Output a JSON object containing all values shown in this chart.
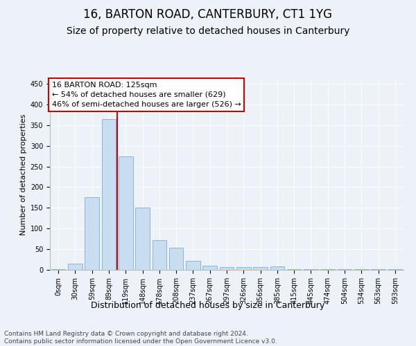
{
  "title1": "16, BARTON ROAD, CANTERBURY, CT1 1YG",
  "title2": "Size of property relative to detached houses in Canterbury",
  "xlabel": "Distribution of detached houses by size in Canterbury",
  "ylabel": "Number of detached properties",
  "bin_labels": [
    "0sqm",
    "30sqm",
    "59sqm",
    "89sqm",
    "119sqm",
    "148sqm",
    "178sqm",
    "208sqm",
    "237sqm",
    "267sqm",
    "297sqm",
    "326sqm",
    "356sqm",
    "385sqm",
    "415sqm",
    "445sqm",
    "474sqm",
    "504sqm",
    "534sqm",
    "563sqm",
    "593sqm"
  ],
  "bar_heights": [
    2,
    15,
    175,
    365,
    275,
    150,
    72,
    53,
    22,
    10,
    7,
    6,
    6,
    8,
    1,
    1,
    1,
    1,
    1,
    1,
    2
  ],
  "bar_color": "#c8ddf0",
  "bar_edge_color": "#8ab4d8",
  "vline_x": 3.5,
  "vline_color": "#cc0000",
  "annotation_line1": "16 BARTON ROAD: 125sqm",
  "annotation_line2": "← 54% of detached houses are smaller (629)",
  "annotation_line3": "46% of semi-detached houses are larger (526) →",
  "annotation_box_facecolor": "#ffffff",
  "annotation_box_edgecolor": "#cc0000",
  "ylim": [
    0,
    460
  ],
  "yticks": [
    0,
    50,
    100,
    150,
    200,
    250,
    300,
    350,
    400,
    450
  ],
  "footer1": "Contains HM Land Registry data © Crown copyright and database right 2024.",
  "footer2": "Contains public sector information licensed under the Open Government Licence v3.0.",
  "bg_color": "#edf2f9",
  "plot_bg_color": "#edf2f9",
  "grid_color": "#ffffff",
  "title1_fontsize": 12,
  "title2_fontsize": 10,
  "ylabel_fontsize": 8,
  "xlabel_fontsize": 9,
  "tick_fontsize": 7,
  "annotation_fontsize": 8,
  "footer_fontsize": 6.5
}
